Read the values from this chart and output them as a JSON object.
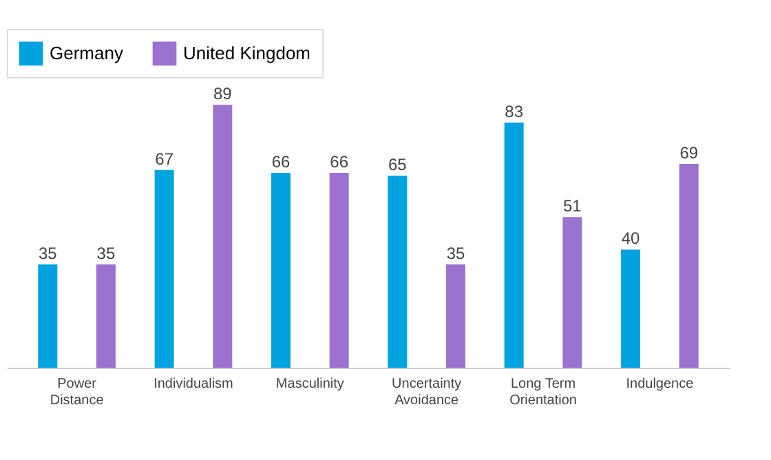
{
  "chart_data": {
    "type": "bar",
    "categories": [
      "Power Distance",
      "Individualism",
      "Masculinity",
      "Uncertainty Avoidance",
      "Long Term Orientation",
      "Indulgence"
    ],
    "series": [
      {
        "name": "Germany",
        "color": "#00a3e0",
        "values": [
          35,
          67,
          66,
          65,
          83,
          40
        ]
      },
      {
        "name": "United Kingdom",
        "color": "#9b72cf",
        "values": [
          35,
          89,
          66,
          35,
          51,
          69
        ]
      }
    ],
    "data_labels": true,
    "legend": "top",
    "grid": false,
    "tick_labels": "x"
  }
}
